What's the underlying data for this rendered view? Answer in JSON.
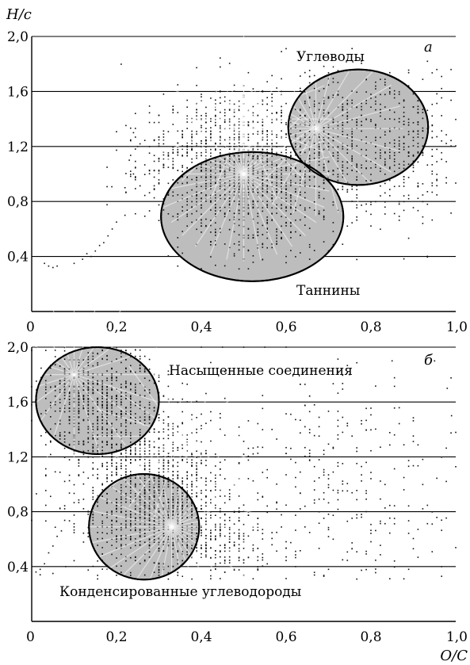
{
  "chart_data": [
    {
      "type": "scatter",
      "panel_label": "а",
      "ylabel": "H/c",
      "xlabel": "",
      "xlim": [
        0,
        1.0
      ],
      "ylim": [
        0,
        2.0
      ],
      "xticks": [
        "0",
        "0,2",
        "0,4",
        "0,6",
        "0,8",
        "1,0"
      ],
      "yticks": [
        "0,4",
        "0,8",
        "1,2",
        "1,6",
        "2,0"
      ],
      "gridlines_y": [
        0.4,
        0.8,
        1.2,
        1.6,
        2.0
      ],
      "grid": "horizontal",
      "regions": [
        {
          "label": "Углеводы",
          "center": [
            0.77,
            1.34
          ],
          "radii": [
            0.165,
            0.42
          ],
          "fill": "#bdbdbd"
        },
        {
          "label": "Таннины",
          "center": [
            0.52,
            0.69
          ],
          "radii": [
            0.215,
            0.47
          ],
          "fill": "#bdbdbd"
        }
      ],
      "clusters": [
        {
          "center": [
            0.5,
            1.0
          ],
          "sx": 0.09,
          "sy": 0.3,
          "n": 1000
        },
        {
          "center": [
            0.72,
            1.2
          ],
          "sx": 0.11,
          "sy": 0.28,
          "n": 650
        },
        {
          "center": [
            0.36,
            1.1
          ],
          "sx": 0.08,
          "sy": 0.25,
          "n": 250
        },
        {
          "center": [
            0.9,
            1.2
          ],
          "sx": 0.06,
          "sy": 0.35,
          "n": 160
        }
      ],
      "tail": [
        [
          0.03,
          0.35
        ],
        [
          0.04,
          0.33
        ],
        [
          0.05,
          0.32
        ],
        [
          0.06,
          0.33
        ],
        [
          0.1,
          0.35
        ],
        [
          0.12,
          0.38
        ],
        [
          0.13,
          0.42
        ],
        [
          0.14,
          0.4
        ],
        [
          0.15,
          0.44
        ],
        [
          0.16,
          0.48
        ],
        [
          0.17,
          0.5
        ],
        [
          0.18,
          0.55
        ],
        [
          0.19,
          0.6
        ],
        [
          0.2,
          0.65
        ],
        [
          0.22,
          0.7
        ],
        [
          0.22,
          0.9
        ],
        [
          0.23,
          1.1
        ],
        [
          0.24,
          1.0
        ],
        [
          0.25,
          1.2
        ],
        [
          0.24,
          1.3
        ]
      ],
      "rays": [
        {
          "center": [
            0.5,
            1.0
          ],
          "count": 16
        },
        {
          "center": [
            0.67,
            1.33
          ],
          "count": 12
        },
        {
          "center": [
            0.5,
            1.4
          ],
          "count": 8
        }
      ],
      "dot_color": "#111111"
    },
    {
      "type": "scatter",
      "panel_label": "б",
      "ylabel": "",
      "xlabel": "O/C",
      "xlim": [
        0,
        1.0
      ],
      "ylim": [
        0,
        2.0
      ],
      "xticks": [
        "0",
        "0,2",
        "0,4",
        "0,6",
        "0,8",
        "1,0"
      ],
      "yticks": [
        "0,4",
        "0,8",
        "1,2",
        "1,6",
        "2,0"
      ],
      "gridlines_y": [
        0.4,
        0.8,
        1.2,
        1.6,
        2.0
      ],
      "grid": "horizontal",
      "regions": [
        {
          "label": "Насыщенные соединения",
          "center": [
            0.155,
            1.61
          ],
          "radii": [
            0.145,
            0.39
          ],
          "fill": "#bdbdbd"
        },
        {
          "label": "Конденсированные углеводороды",
          "center": [
            0.265,
            0.69
          ],
          "radii": [
            0.13,
            0.385
          ],
          "fill": "#bdbdbd"
        }
      ],
      "clusters": [
        {
          "center": [
            0.16,
            1.62
          ],
          "sx": 0.07,
          "sy": 0.22,
          "n": 750
        },
        {
          "center": [
            0.3,
            0.8
          ],
          "sx": 0.09,
          "sy": 0.25,
          "n": 900
        },
        {
          "center": [
            0.25,
            1.2
          ],
          "sx": 0.09,
          "sy": 0.25,
          "n": 450
        },
        {
          "center": [
            0.7,
            1.0
          ],
          "sx": 0.17,
          "sy": 0.45,
          "n": 380
        },
        {
          "center": [
            0.45,
            0.6
          ],
          "sx": 0.06,
          "sy": 0.15,
          "n": 180
        }
      ],
      "tail": [
        [
          0.01,
          0.36
        ],
        [
          0.02,
          0.38
        ],
        [
          0.03,
          0.42
        ],
        [
          0.04,
          0.5
        ],
        [
          0.05,
          0.55
        ],
        [
          0.06,
          0.62
        ],
        [
          0.07,
          0.66
        ],
        [
          0.02,
          0.34
        ],
        [
          0.05,
          0.35
        ],
        [
          0.08,
          0.4
        ],
        [
          0.4,
          2.0
        ],
        [
          0.45,
          2.0
        ],
        [
          0.5,
          2.0
        ],
        [
          0.55,
          2.0
        ],
        [
          0.6,
          2.0
        ],
        [
          0.75,
          1.8
        ],
        [
          0.85,
          1.9
        ],
        [
          0.95,
          1.9
        ],
        [
          0.98,
          1.7
        ],
        [
          0.99,
          1.5
        ]
      ],
      "rays": [
        {
          "center": [
            0.33,
            0.69
          ],
          "count": 16
        },
        {
          "center": [
            0.1,
            1.8
          ],
          "count": 10
        },
        {
          "center": [
            0.35,
            1.35
          ],
          "count": 10
        }
      ],
      "dot_color": "#111111"
    }
  ]
}
